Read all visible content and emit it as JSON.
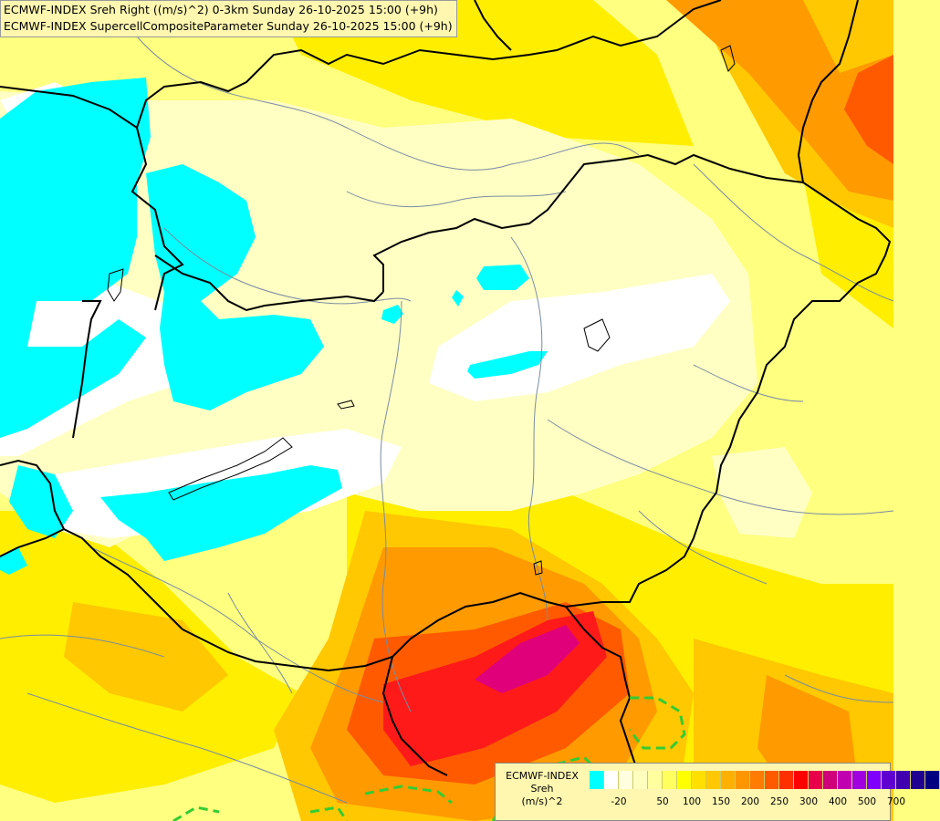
{
  "title": {
    "line1": "ECMWF-INDEX Sreh Right ((m/s)^2) 0-3km Sunday 26-10-2025 15:00 (+9h)",
    "line2": "ECMWF-INDEX SupercellCompositeParameter Sunday 26-10-2025 15:00 (+9h)"
  },
  "legend": {
    "model": "ECMWF-INDEX",
    "variable": "Sreh",
    "unit": "(m/s)^2",
    "colors": [
      "#00ffff",
      "#ffffff",
      "#ffffe0",
      "#ffffc0",
      "#ffffa0",
      "#ffff60",
      "#ffff00",
      "#ffe000",
      "#ffc800",
      "#ffb000",
      "#ff9600",
      "#ff7c00",
      "#ff5a00",
      "#ff3000",
      "#ff0000",
      "#e8004a",
      "#d0007a",
      "#c000b0",
      "#a000e0",
      "#8000ff",
      "#6000d0",
      "#4000b0",
      "#200090",
      "#000080"
    ],
    "tick_labels": [
      "-20",
      "50",
      "100",
      "150",
      "200",
      "250",
      "300",
      "400",
      "500",
      "700"
    ]
  },
  "map": {
    "field_colors": {
      "cyan": "#00ffff",
      "white": "#ffffff",
      "pale": "#ffffc4",
      "light": "#ffff80",
      "yellow": "#ffee00",
      "gold": "#ffc800",
      "orange": "#ff9a00",
      "red_orange": "#ff5a00",
      "red": "#ff1a1a",
      "magenta": "#e0007a"
    },
    "border_color": "#000000",
    "river_color": "#7a8ca0",
    "scp_contour_color": "#33cc33"
  }
}
